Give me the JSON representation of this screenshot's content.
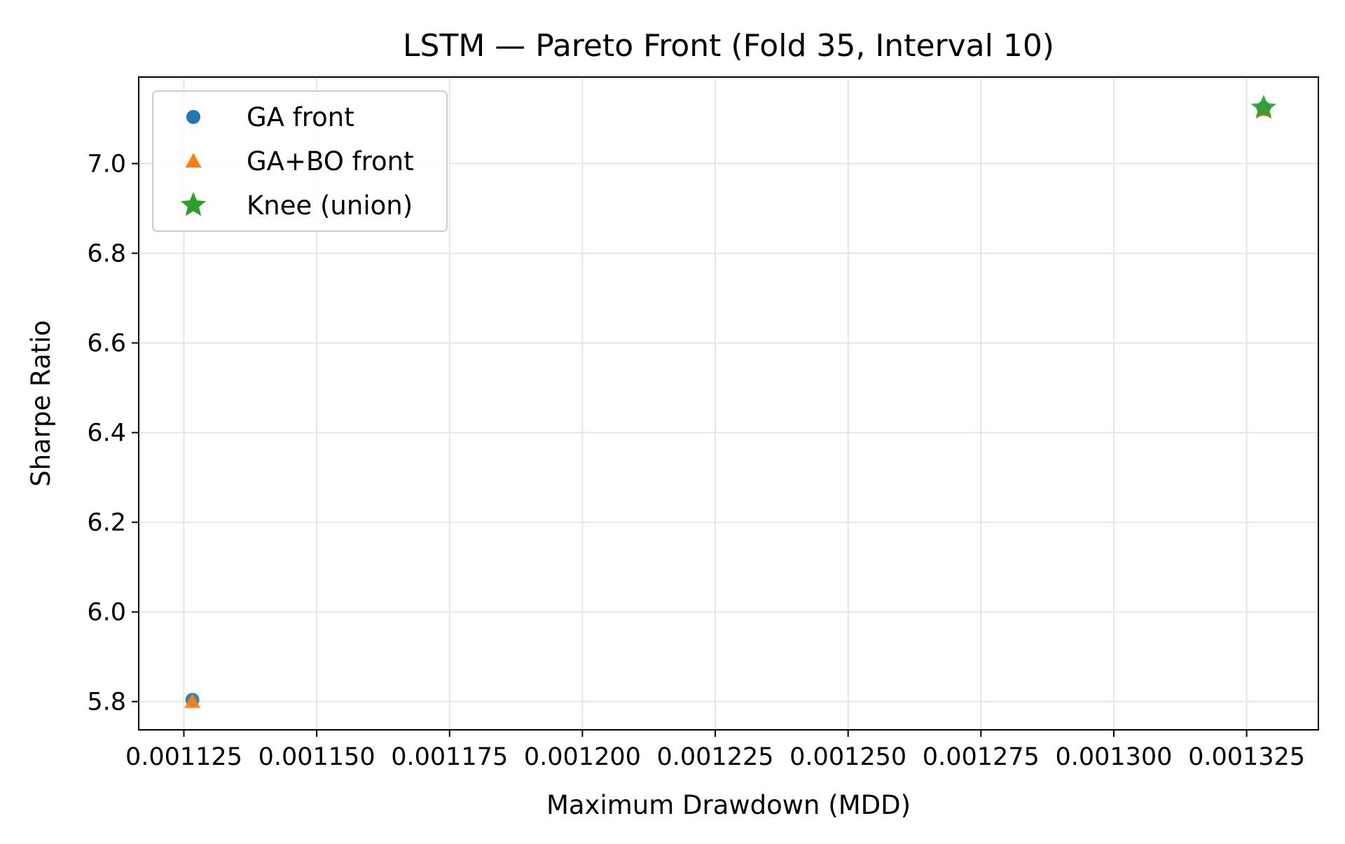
{
  "chart_data": {
    "type": "scatter",
    "title": "LSTM — Pareto Front (Fold 35, Interval 10)",
    "xlabel": "Maximum Drawdown (MDD)",
    "ylabel": "Sharpe Ratio",
    "xlim": [
      0.0011165,
      0.0013385
    ],
    "ylim": [
      5.737,
      7.193
    ],
    "x_ticks": [
      0.001125,
      0.00115,
      0.001175,
      0.0012,
      0.001225,
      0.00125,
      0.001275,
      0.0013,
      0.001325
    ],
    "x_tick_labels": [
      "0.001125",
      "0.001150",
      "0.001175",
      "0.001200",
      "0.001225",
      "0.001250",
      "0.001275",
      "0.001300",
      "0.001325"
    ],
    "y_ticks": [
      5.8,
      6.0,
      6.2,
      6.4,
      6.6,
      6.8,
      7.0
    ],
    "y_tick_labels": [
      "5.8",
      "6.0",
      "6.2",
      "6.4",
      "6.6",
      "6.8",
      "7.0"
    ],
    "grid": true,
    "legend_position": "top-left",
    "series": [
      {
        "name": "GA front",
        "marker": "circle",
        "color": "#1f77b4",
        "points": [
          {
            "x": 0.0011266,
            "y": 5.804
          },
          {
            "x": 0.0013282,
            "y": 7.124
          }
        ]
      },
      {
        "name": "GA+BO front",
        "marker": "triangle",
        "color": "#ff7f0e",
        "points": [
          {
            "x": 0.0011266,
            "y": 5.8
          },
          {
            "x": 0.0013282,
            "y": 7.12
          }
        ]
      },
      {
        "name": "Knee (union)",
        "marker": "star",
        "color": "#2ca02c",
        "points": [
          {
            "x": 0.0013282,
            "y": 7.124
          }
        ]
      }
    ]
  }
}
